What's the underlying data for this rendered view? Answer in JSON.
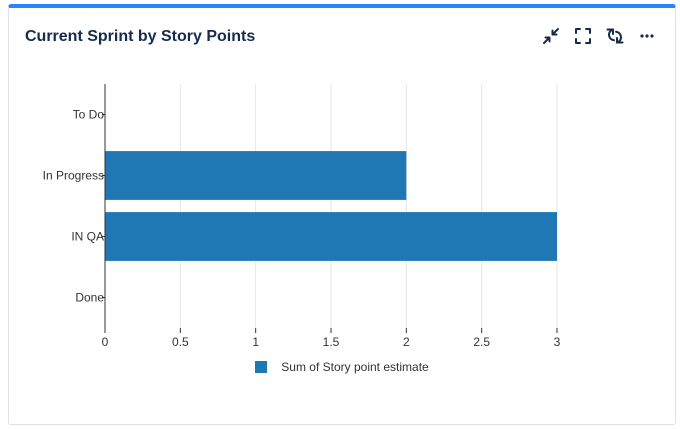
{
  "widget": {
    "title": "Current Sprint by Story Points",
    "actions": [
      {
        "name": "minimize-icon"
      },
      {
        "name": "fullscreen-icon"
      },
      {
        "name": "refresh-icon"
      },
      {
        "name": "more-options-icon"
      }
    ]
  },
  "colors": {
    "accent": "#2684ff",
    "bar": "#1f77b4",
    "grid": "#e6e6e6",
    "axis": "#333333"
  },
  "chart_data": {
    "type": "bar",
    "orientation": "horizontal",
    "categories": [
      "To Do",
      "In Progress",
      "IN QA",
      "Done"
    ],
    "series": [
      {
        "name": "Sum of Story point estimate",
        "values": [
          0,
          2,
          3,
          0
        ]
      }
    ],
    "xlim": [
      0,
      3
    ],
    "xticks": [
      "0",
      "0.5",
      "1",
      "1.5",
      "2",
      "2.5",
      "3"
    ],
    "grid": true,
    "legend": "bottom-center"
  }
}
